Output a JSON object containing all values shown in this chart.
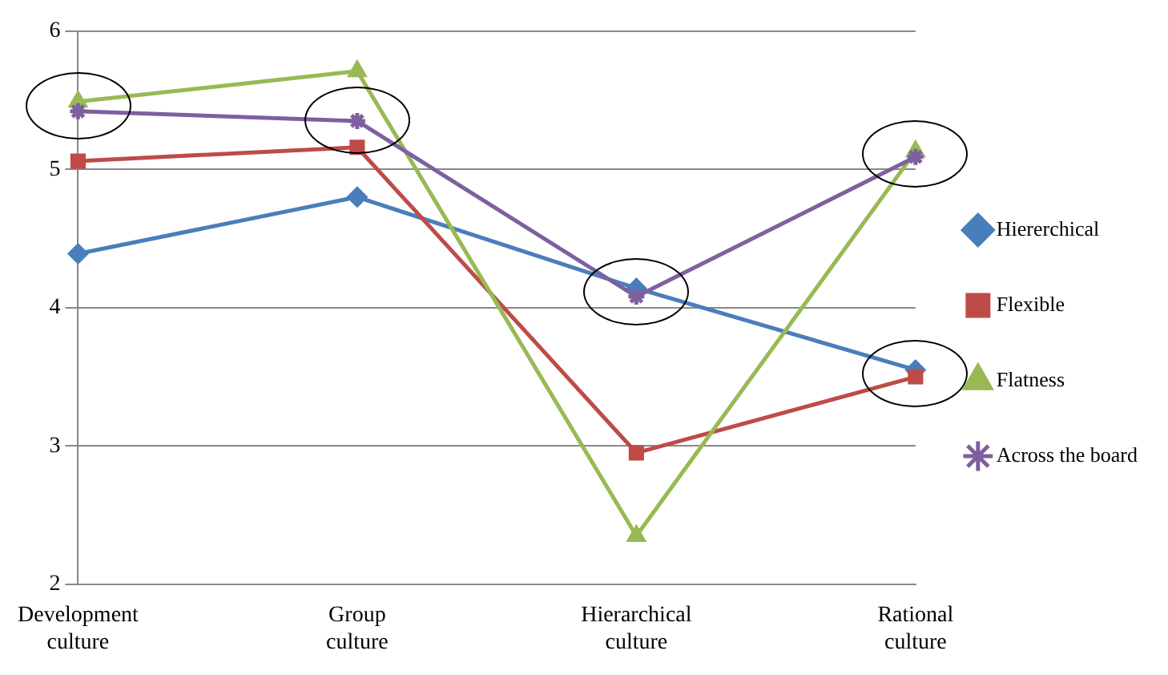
{
  "chart_data": {
    "type": "line",
    "categories": [
      "Development culture",
      "Group culture",
      "Hierarchical culture",
      "Rational culture"
    ],
    "series": [
      {
        "name": "Hiererchical",
        "color": "#4a7ebb",
        "marker": "diamond",
        "values": [
          4.39,
          4.8,
          4.14,
          3.55
        ]
      },
      {
        "name": "Flexible",
        "color": "#be4b48",
        "marker": "square",
        "values": [
          5.06,
          5.16,
          2.95,
          3.5
        ]
      },
      {
        "name": "Flatness",
        "color": "#98b954",
        "marker": "triangle",
        "values": [
          5.49,
          5.71,
          2.35,
          5.13
        ]
      },
      {
        "name": "Across the board",
        "color": "#7d60a0",
        "marker": "cross",
        "values": [
          5.42,
          5.35,
          4.08,
          5.09
        ]
      }
    ],
    "ylim": [
      2,
      6
    ],
    "yticks": [
      2,
      3,
      4,
      5,
      6
    ],
    "grid": "y",
    "legend": "right",
    "line_style": "solid"
  }
}
